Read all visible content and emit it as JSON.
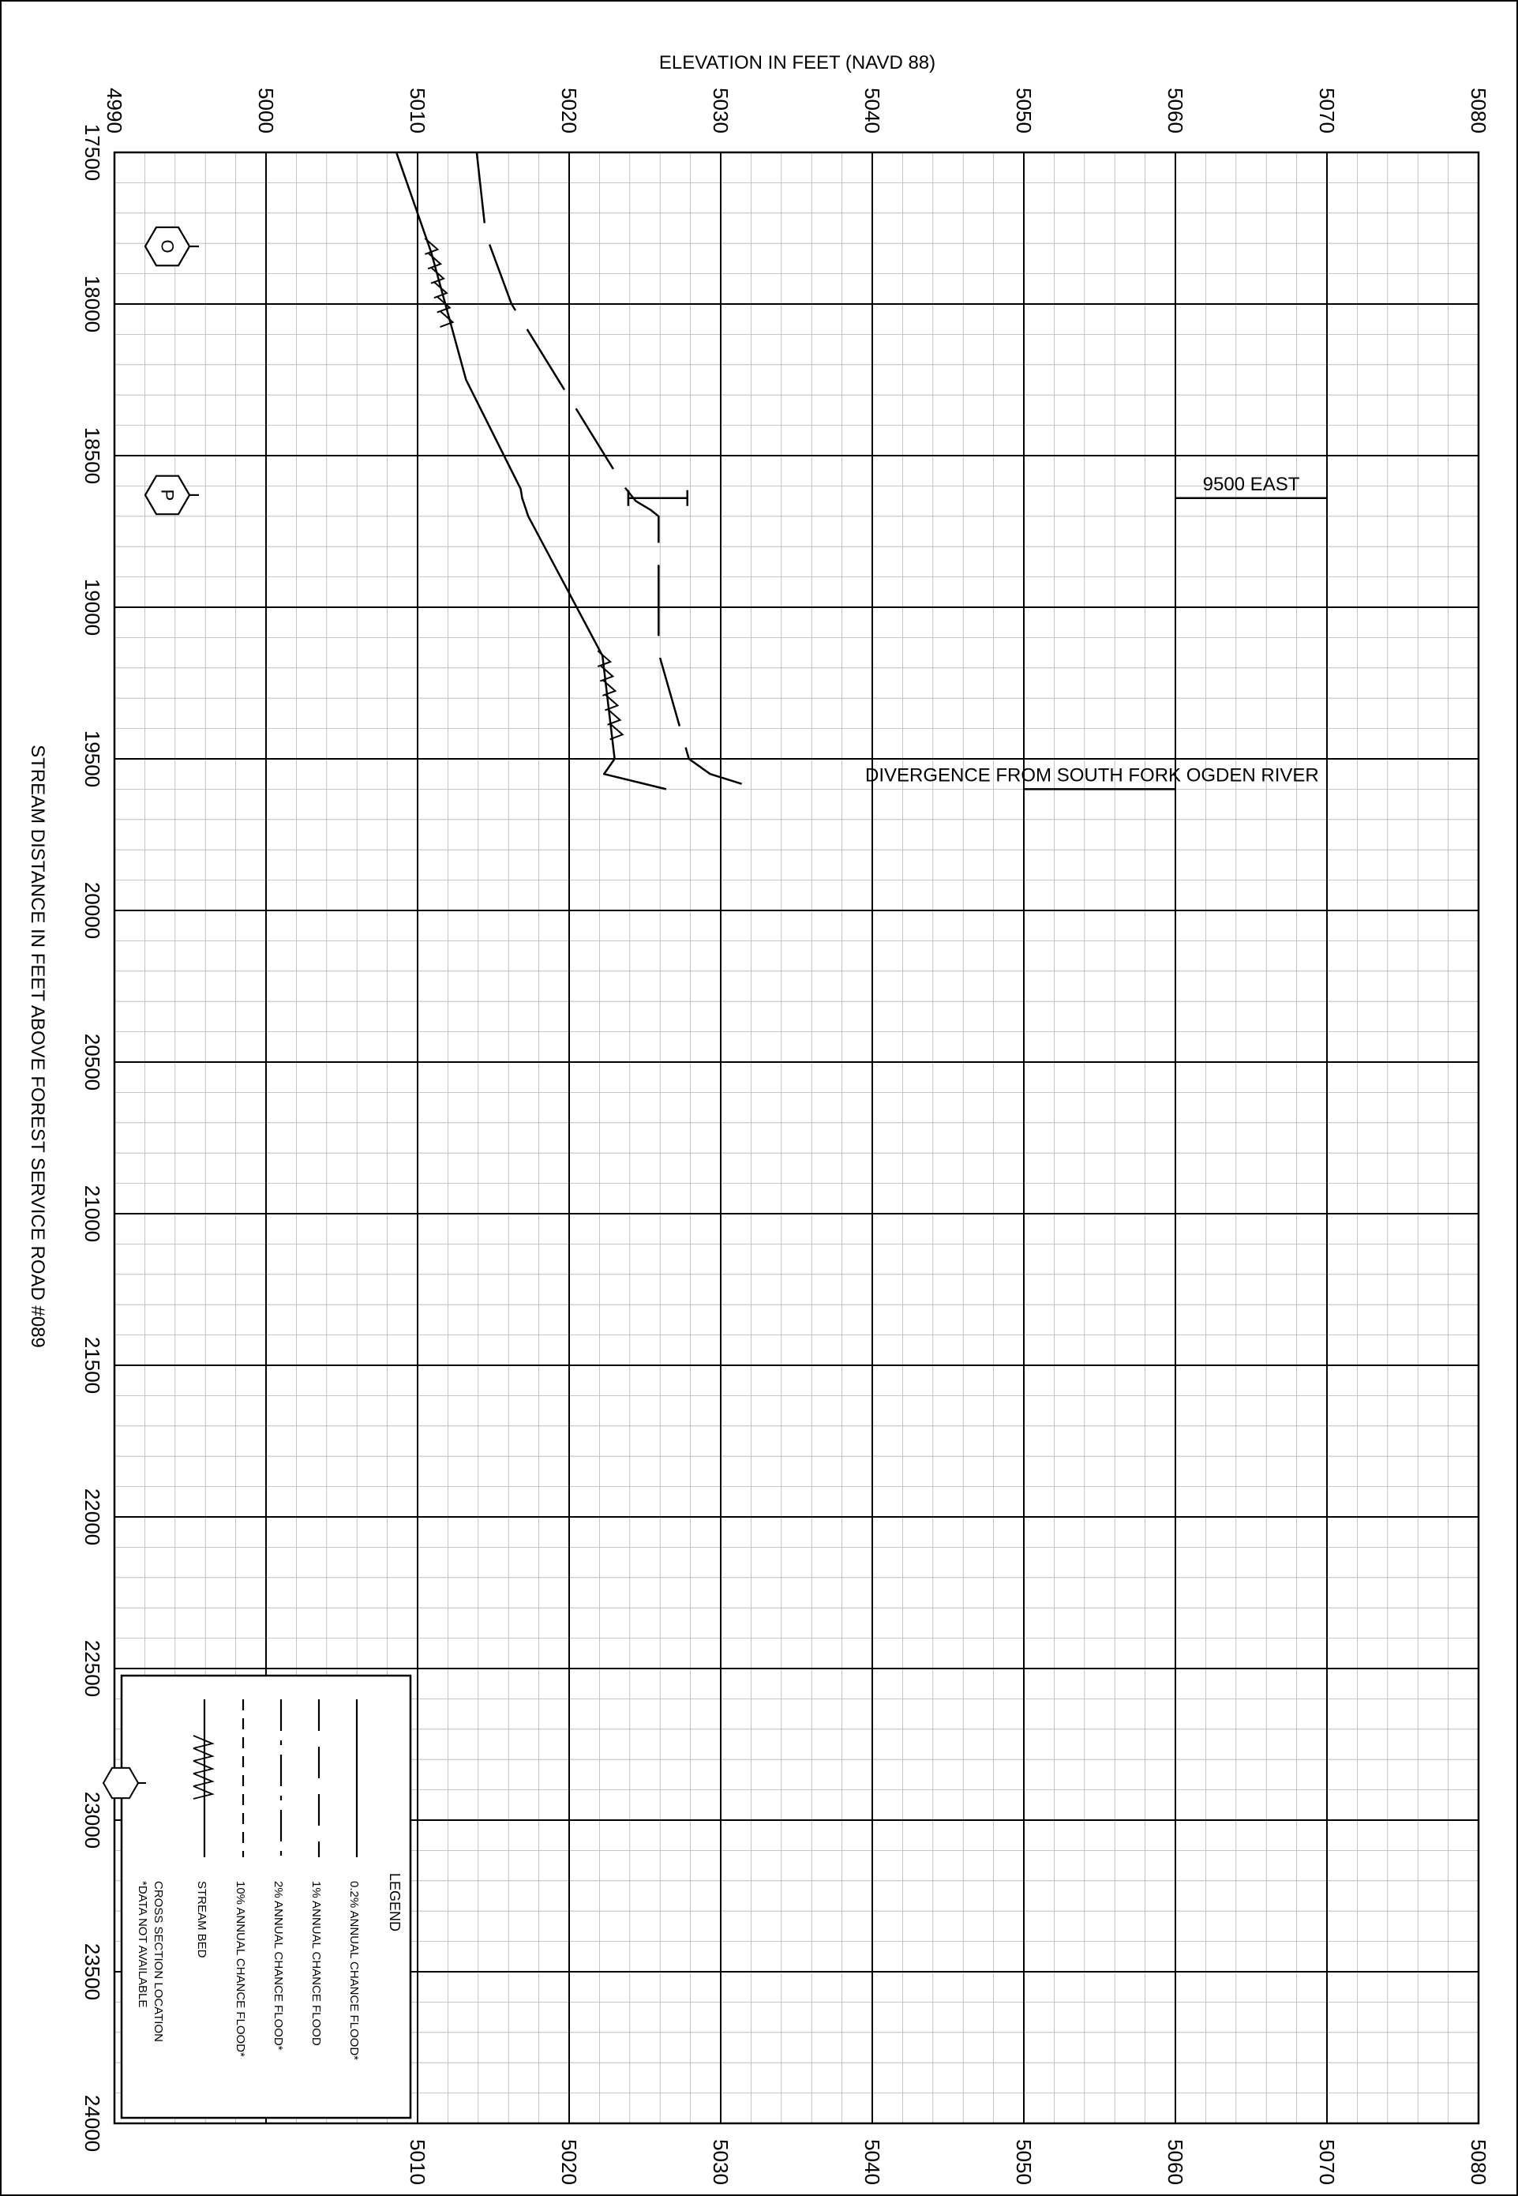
{
  "chart_data": {
    "type": "line",
    "title": "",
    "ylabel": "ELEVATION IN FEET (NAVD 88)",
    "xlabel": "STREAM DISTANCE IN FEET ABOVE FOREST SERVICE ROAD #089",
    "xlim": [
      17500,
      24000
    ],
    "ylim": [
      4990,
      5080
    ],
    "x_ticks": [
      "17500",
      "18000",
      "18500",
      "19000",
      "19500",
      "20000",
      "20500",
      "21000",
      "21500",
      "22000",
      "22500",
      "23000",
      "23500",
      "24000"
    ],
    "y_ticks": [
      "4990",
      "5000",
      "5010",
      "5020",
      "5030",
      "5040",
      "5050",
      "5060",
      "5070",
      "5080"
    ],
    "y_ticks_bottom": [
      "5010",
      "5020",
      "5030",
      "5040",
      "5050",
      "5060",
      "5070",
      "5080"
    ],
    "grid": true,
    "series": [
      {
        "name": "STREAM BED",
        "style": "solid",
        "points": [
          [
            17500,
            5008.6
          ],
          [
            17830,
            5010.9
          ],
          [
            18250,
            5013.2
          ],
          [
            18610,
            5016.8
          ],
          [
            18640,
            5016.9
          ],
          [
            18700,
            5017.3
          ],
          [
            19160,
            5022.2
          ],
          [
            19500,
            5023.0
          ],
          [
            19550,
            5022.3
          ],
          [
            19600,
            5026.4
          ]
        ]
      },
      {
        "name": "1% ANNUAL CHANCE FLOOD",
        "style": "long-dash",
        "points": [
          [
            17500,
            5013.9
          ],
          [
            17770,
            5014.5
          ],
          [
            18000,
            5016.2
          ],
          [
            18600,
            5023.6
          ],
          [
            18650,
            5024.4
          ],
          [
            18680,
            5025.4
          ],
          [
            18700,
            5025.9
          ],
          [
            19150,
            5025.9
          ],
          [
            19500,
            5027.9
          ],
          [
            19550,
            5029.3
          ],
          [
            19600,
            5032.5
          ]
        ]
      }
    ],
    "profile_baseline": {
      "name": "STREAM BED",
      "from_x": 19500,
      "to_x": 24000
    },
    "bracket": {
      "x": 18640,
      "y_from": 5023.9,
      "y_to": 5027.8
    },
    "road_crossings": [
      {
        "label": "9500 EAST",
        "x": 18640,
        "y_from": 5060,
        "y_to": 5070
      },
      {
        "label": "DIVERGENCE FROM SOUTH FORK OGDEN RIVER",
        "x": 19600,
        "y_from": 5050,
        "y_to": 5060
      }
    ],
    "cross_sections": [
      {
        "label": "O",
        "x": 17810
      },
      {
        "label": "P",
        "x": 18630
      }
    ],
    "legend": {
      "title": "LEGEND",
      "position": "bottom-left",
      "items": [
        {
          "label": "0.2% ANNUAL CHANCE FLOOD*",
          "symbol": "solid"
        },
        {
          "label": "1% ANNUAL CHANCE FLOOD",
          "symbol": "long-dash"
        },
        {
          "label": "2% ANNUAL CHANCE FLOOD*",
          "symbol": "dash-dot"
        },
        {
          "label": "10% ANNUAL CHANCE FLOOD*",
          "symbol": "short-dash"
        },
        {
          "label": "STREAM BED",
          "symbol": "hatched"
        },
        {
          "label": "CROSS SECTION LOCATION",
          "symbol": "hexagon"
        }
      ],
      "note": "*DATA NOT AVAILABLE"
    }
  }
}
